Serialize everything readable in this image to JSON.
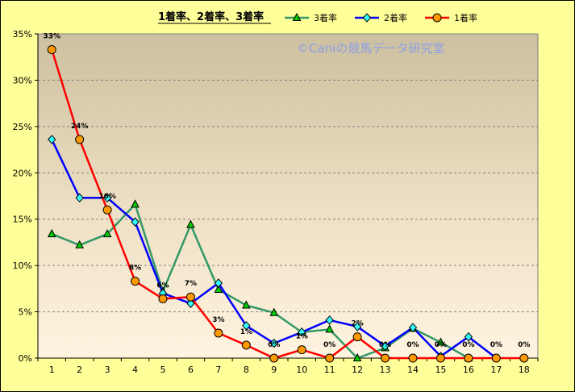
{
  "chart_data": {
    "type": "line",
    "title": "1着率、2着率、3着率",
    "watermark": "©Caniの競馬データ研究室",
    "categories": [
      "1",
      "2",
      "3",
      "4",
      "5",
      "6",
      "7",
      "8",
      "9",
      "10",
      "11",
      "12",
      "13",
      "14",
      "15",
      "16",
      "17",
      "18"
    ],
    "ylim": [
      0,
      35
    ],
    "yticks": [
      "0%",
      "5%",
      "10%",
      "15%",
      "20%",
      "25%",
      "30%",
      "35%"
    ],
    "grid": "horizontal dashed",
    "legend_position": "top",
    "series": [
      {
        "name": "3着率",
        "color": "#339966",
        "marker": "triangle",
        "marker_color": "#00cc00",
        "values": [
          13.4,
          12.2,
          13.4,
          16.6,
          7.2,
          14.4,
          7.4,
          5.7,
          4.9,
          2.8,
          3.1,
          0,
          1.1,
          3.2,
          1.7,
          0,
          null,
          null
        ]
      },
      {
        "name": "2着率",
        "color": "#0000ff",
        "marker": "diamond",
        "marker_color": "#33ffff",
        "values": [
          23.6,
          17.3,
          17.3,
          14.7,
          7.0,
          5.9,
          8.1,
          3.5,
          1.6,
          2.8,
          4.1,
          3.4,
          1.3,
          3.3,
          0.2,
          2.3,
          0,
          null
        ]
      },
      {
        "name": "1着率",
        "color": "#ff0000",
        "marker": "circle",
        "marker_color": "#ff9900",
        "values": [
          33.3,
          23.6,
          16.0,
          8.3,
          6.4,
          6.6,
          2.7,
          1.4,
          0,
          0.9,
          0,
          2.3,
          0,
          0,
          0,
          0,
          0,
          0
        ],
        "data_labels": [
          "33%",
          "24%",
          "16%",
          "8%",
          "6%",
          "7%",
          "3%",
          "1%",
          "0%",
          "1%",
          "0%",
          "2%",
          "0%",
          "0%",
          "0%",
          "0%",
          "0%",
          "0%"
        ]
      }
    ]
  }
}
